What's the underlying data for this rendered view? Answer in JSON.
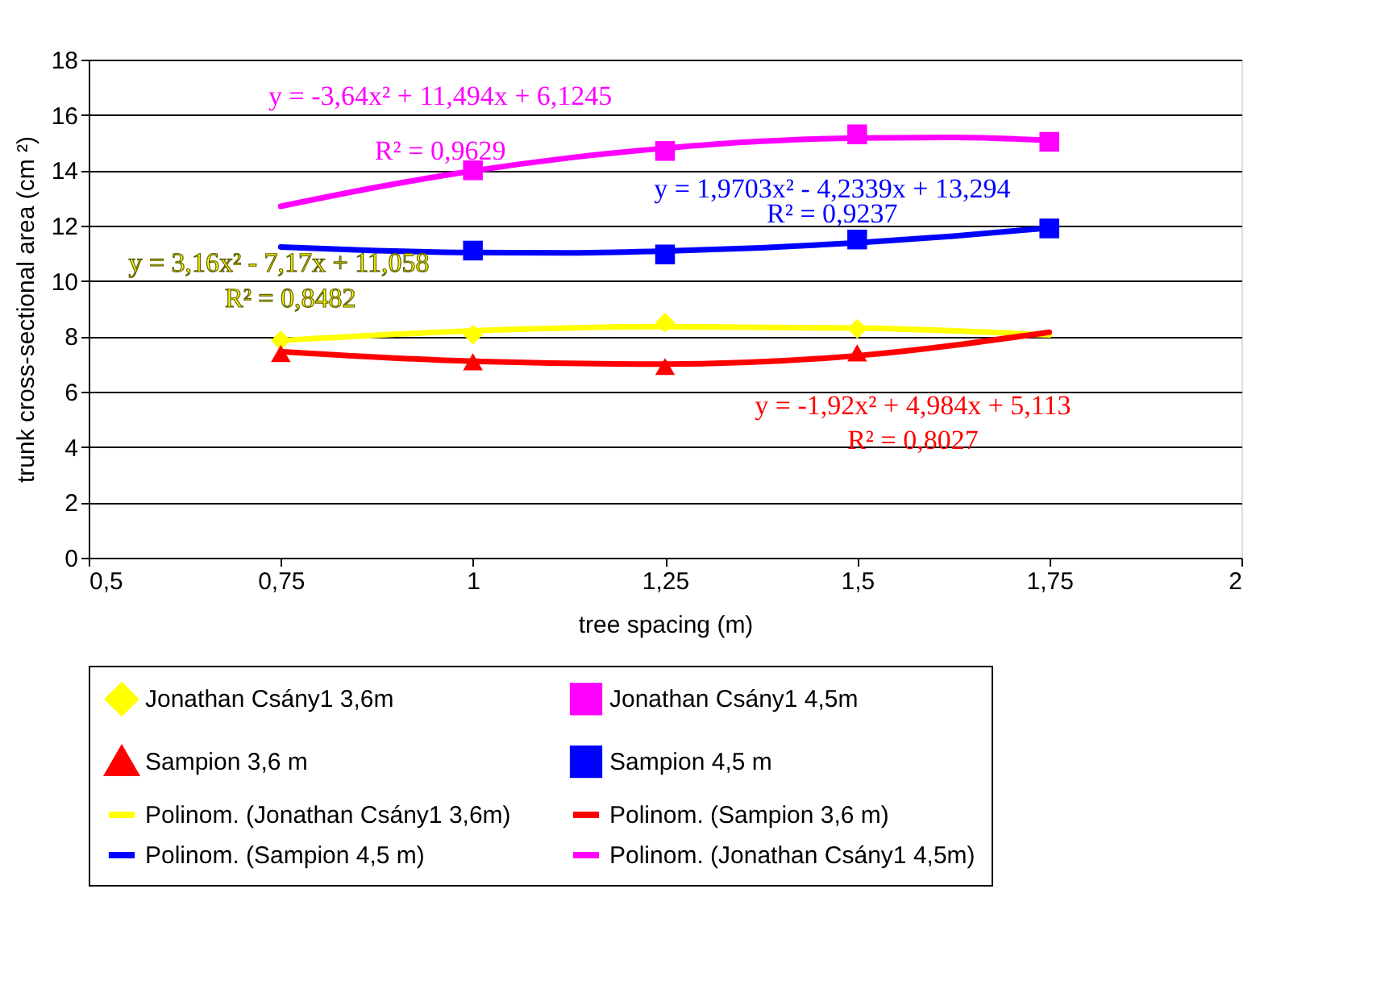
{
  "chart_data": {
    "type": "scatter",
    "xlabel": "tree spacing (m)",
    "ylabel": "trunk cross-sectional area (cm ²)",
    "xlim": [
      0.5,
      2
    ],
    "xticks": [
      {
        "value": 0.5,
        "label": "0,5"
      },
      {
        "value": 0.75,
        "label": "0,75"
      },
      1,
      {
        "value": 1.25,
        "label": "1,25"
      },
      {
        "value": 1.5,
        "label": "1,5"
      },
      {
        "value": 1.75,
        "label": "1,75"
      },
      2
    ],
    "ylim": [
      0,
      18
    ],
    "yticks": [
      0,
      2,
      4,
      6,
      8,
      10,
      12,
      14,
      16,
      18
    ],
    "grid": "y",
    "legend": "bottom",
    "x": [
      0.75,
      1,
      1.25,
      1.5,
      1.75
    ],
    "series": [
      {
        "name": "Jonathan Csány1 3,6m",
        "marker": "diamond",
        "color": "#ffff00",
        "values": [
          7.86,
          8.06,
          8.5,
          8.27,
          null
        ]
      },
      {
        "name": "Jonathan Csány1 4,5m",
        "marker": "square",
        "color": "#ff00ff",
        "values": [
          null,
          14.0,
          14.7,
          15.3,
          15.03
        ]
      },
      {
        "name": "Sampion 3,6 m",
        "marker": "triangle",
        "color": "#ff0000",
        "values": [
          7.38,
          7.08,
          6.91,
          7.4,
          null
        ]
      },
      {
        "name": "Sampion 4,5 m",
        "marker": "square",
        "color": "#0000ff",
        "values": [
          null,
          11.1,
          10.96,
          11.5,
          11.9
        ]
      },
      {
        "name": "Polinom. (Jonathan Csány1 3,6m)",
        "type": "line",
        "marker": "none",
        "line_style": "solid",
        "color": "#ffff00",
        "x": [
          0.75,
          1,
          1.25,
          1.5,
          1.75
        ],
        "values": [
          7.85,
          8.2,
          8.35,
          8.3,
          8.05
        ]
      },
      {
        "name": "Polinom. (Sampion 3,6 m)",
        "type": "line",
        "marker": "none",
        "line_style": "solid",
        "color": "#ff0000",
        "x": [
          0.75,
          1,
          1.25,
          1.5,
          1.75
        ],
        "values": [
          7.45,
          7.1,
          7.0,
          7.3,
          8.15
        ]
      },
      {
        "name": "Polinom. (Sampion 4,5 m)",
        "type": "line",
        "marker": "none",
        "line_style": "solid",
        "color": "#0000ff",
        "x": [
          0.75,
          0.875,
          1,
          1.125,
          1.25,
          1.375,
          1.5,
          1.625,
          1.75
        ],
        "values": [
          11.23,
          11.1,
          11.03,
          11.02,
          11.08,
          11.2,
          11.38,
          11.62,
          11.92
        ]
      },
      {
        "name": "Polinom. (Jonathan Csány1 4,5m)",
        "type": "line",
        "marker": "none",
        "line_style": "solid",
        "color": "#ff00ff",
        "x": [
          0.75,
          0.875,
          1,
          1.125,
          1.25,
          1.375,
          1.5,
          1.625,
          1.75
        ],
        "values": [
          12.7,
          13.39,
          13.98,
          14.45,
          14.8,
          15.05,
          15.17,
          15.19,
          15.08
        ]
      }
    ],
    "annotations": [
      "y = -3,64x² + 11,494x + 6,1245",
      "R² = 0,9629",
      "y = 1,9703x² - 4,2339x + 13,294",
      "R² = 0,9237",
      "y = 3,16x² - 7,17x + 11,058",
      "R² = 0,8482",
      "y = -1,92x² + 4,984x + 5,113",
      "R² = 0,8027"
    ]
  }
}
